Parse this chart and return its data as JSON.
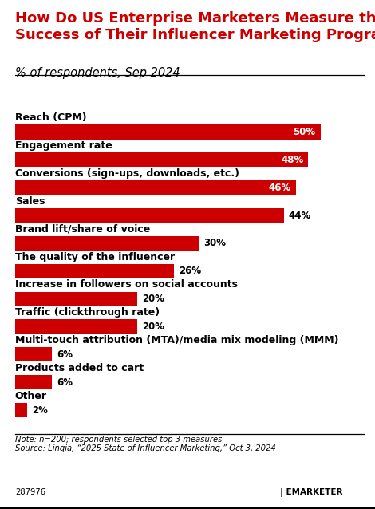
{
  "title": "How Do US Enterprise Marketers Measure the\nSuccess of Their Influencer Marketing Programs?",
  "subtitle": "% of respondents, Sep 2024",
  "categories": [
    "Reach (CPM)",
    "Engagement rate",
    "Conversions (sign-ups, downloads, etc.)",
    "Sales",
    "Brand lift/share of voice",
    "The quality of the influencer",
    "Increase in followers on social accounts",
    "Traffic (clickthrough rate)",
    "Multi-touch attribution (MTA)/media mix modeling (MMM)",
    "Products added to cart",
    "Other"
  ],
  "values": [
    50,
    48,
    46,
    44,
    30,
    26,
    20,
    20,
    6,
    6,
    2
  ],
  "bar_color": "#CC0000",
  "title_color": "#CC0000",
  "subtitle_color": "#000000",
  "background_color": "#FFFFFF",
  "note_line1": "Note: n=200; respondents selected top 3 measures",
  "note_line2": "Source: Linqia, “2025 State of Influencer Marketing,” Oct 3, 2024",
  "footnote_id": "287976",
  "xlim": [
    0,
    54
  ],
  "inside_label_threshold": 46,
  "title_fontsize": 13,
  "subtitle_fontsize": 10.5,
  "category_fontsize": 9,
  "value_fontsize": 8.5,
  "note_fontsize": 7.2
}
